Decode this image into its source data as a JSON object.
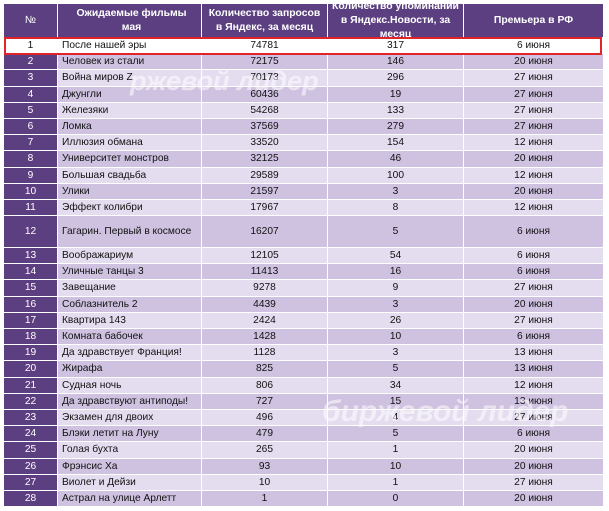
{
  "header": {
    "num": "№",
    "film": "Ожидаемые фильмы мая",
    "requests": "Количество запросов в Яндекс, за месяц",
    "mentions": "Количество упоминаний в Яндекс.Новости, за месяц",
    "premiere": "Премьера в РФ"
  },
  "rows": [
    {
      "num": "1",
      "film": "После нашей эры",
      "req": "74781",
      "ment": "317",
      "date": "6 июня"
    },
    {
      "num": "2",
      "film": "Человек из стали",
      "req": "72175",
      "ment": "146",
      "date": "20 июня"
    },
    {
      "num": "3",
      "film": "Война миров Z",
      "req": "70173",
      "ment": "296",
      "date": "27 июня"
    },
    {
      "num": "4",
      "film": "Джунгли",
      "req": "60436",
      "ment": "19",
      "date": "27 июня"
    },
    {
      "num": "5",
      "film": "Железяки",
      "req": "54268",
      "ment": "133",
      "date": "27 июня"
    },
    {
      "num": "6",
      "film": "Ломка",
      "req": "37569",
      "ment": "279",
      "date": "27 июня"
    },
    {
      "num": "7",
      "film": "Иллюзия обмана",
      "req": "33520",
      "ment": "154",
      "date": "12 июня"
    },
    {
      "num": "8",
      "film": "Университет монстров",
      "req": "32125",
      "ment": "46",
      "date": "20 июня"
    },
    {
      "num": "9",
      "film": "Большая свадьба",
      "req": "29589",
      "ment": "100",
      "date": "12 июня"
    },
    {
      "num": "10",
      "film": "Улики",
      "req": "21597",
      "ment": "3",
      "date": "20 июня"
    },
    {
      "num": "11",
      "film": "Эффект колибри",
      "req": "17967",
      "ment": "8",
      "date": "12 июня"
    },
    {
      "num": "12",
      "film": "Гагарин. Первый в космосе",
      "req": "16207",
      "ment": "5",
      "date": "6 июня"
    },
    {
      "num": "13",
      "film": "Воображариум",
      "req": "12105",
      "ment": "54",
      "date": "6 июня"
    },
    {
      "num": "14",
      "film": "Уличные танцы 3",
      "req": "11413",
      "ment": "16",
      "date": "6 июня"
    },
    {
      "num": "15",
      "film": "Завещание",
      "req": "9278",
      "ment": "9",
      "date": "27 июня"
    },
    {
      "num": "16",
      "film": "Соблазнитель 2",
      "req": "4439",
      "ment": "3",
      "date": "20 июня"
    },
    {
      "num": "17",
      "film": "Квартира 143",
      "req": "2424",
      "ment": "26",
      "date": "27 июня"
    },
    {
      "num": "18",
      "film": "Комната бабочек",
      "req": "1428",
      "ment": "10",
      "date": "6 июня"
    },
    {
      "num": "19",
      "film": "Да здравствует Франция!",
      "req": "1128",
      "ment": "3",
      "date": "13 июня"
    },
    {
      "num": "20",
      "film": "Жирафа",
      "req": "825",
      "ment": "5",
      "date": "13 июня"
    },
    {
      "num": "21",
      "film": "Судная ночь",
      "req": "806",
      "ment": "34",
      "date": "12 июня"
    },
    {
      "num": "22",
      "film": "Да здравствуют антиподы!",
      "req": "727",
      "ment": "15",
      "date": "13 июня"
    },
    {
      "num": "23",
      "film": "Экзамен для двоих",
      "req": "496",
      "ment": "4",
      "date": "27 июня"
    },
    {
      "num": "24",
      "film": "Блэки летит на Луну",
      "req": "479",
      "ment": "5",
      "date": "6 июня"
    },
    {
      "num": "25",
      "film": "Голая бухта",
      "req": "265",
      "ment": "1",
      "date": "20 июня"
    },
    {
      "num": "26",
      "film": "Фрэнсис Ха",
      "req": "93",
      "ment": "10",
      "date": "20 июня"
    },
    {
      "num": "27",
      "film": "Виолет и Дейзи",
      "req": "10",
      "ment": "1",
      "date": "27 июня"
    },
    {
      "num": "28",
      "film": "Астрал на улице Арлетт",
      "req": "1",
      "ment": "0",
      "date": "20 июня"
    }
  ],
  "watermarks": {
    "top": "ржевой лидер",
    "bottom": "биржевой лидер"
  },
  "colors": {
    "header": "#5b3f80",
    "row_light": "#e4dcef",
    "row_dark": "#cfc2e1",
    "highlight_border": "#e0242b"
  }
}
